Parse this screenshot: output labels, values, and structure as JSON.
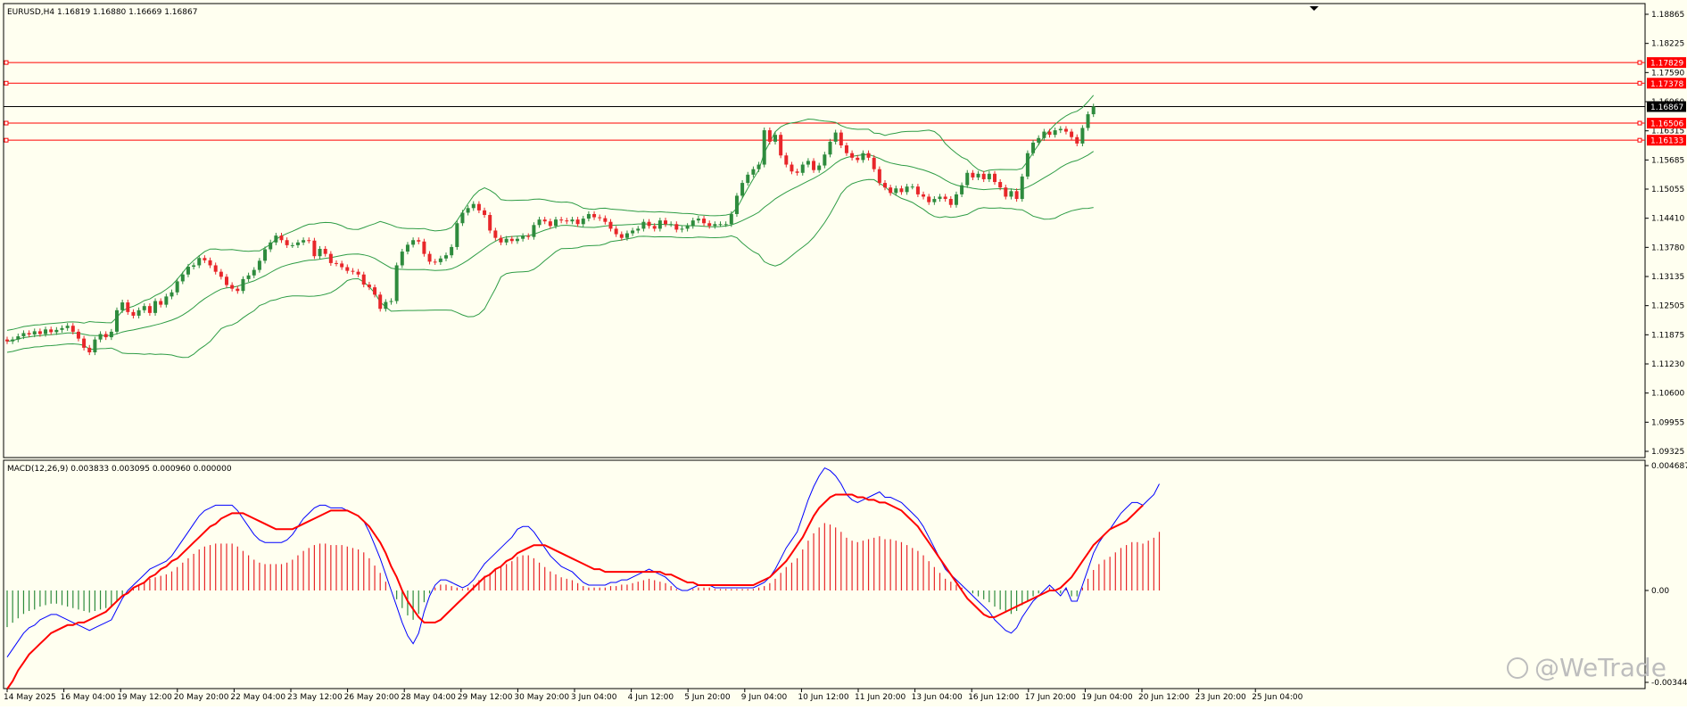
{
  "symbol": {
    "header": "EURUSD,H4  1.16819 1.16880 1.16669 1.16867"
  },
  "macd": {
    "header": "MACD(12,26,9) 0.003833 0.003095 0.000960 0.000000"
  },
  "watermark": {
    "text": "@WeTrade"
  },
  "colors": {
    "background": "#fffff0",
    "frame": "#000000",
    "bull": "#2e8b3d",
    "bear": "#e8262a",
    "band": "#2e9c45",
    "level_line": "#ff0000",
    "macd_line": "#0000ff",
    "signal_line": "#ff0000"
  },
  "price_axis": {
    "ticks": [
      "1.18865",
      "1.18225",
      "1.17590",
      "1.16960",
      "1.16315",
      "1.15685",
      "1.15055",
      "1.14410",
      "1.13780",
      "1.13135",
      "1.12505",
      "1.11875",
      "1.11230",
      "1.10600",
      "1.09955",
      "1.09325"
    ],
    "labels": [
      {
        "text": "1.17829",
        "price": 1.17829,
        "kind": "level"
      },
      {
        "text": "1.17378",
        "price": 1.17378,
        "kind": "level"
      },
      {
        "text": "1.16867",
        "price": 1.16867,
        "kind": "current"
      },
      {
        "text": "1.16506",
        "price": 1.16506,
        "kind": "level"
      },
      {
        "text": "1.16133",
        "price": 1.16133,
        "kind": "level"
      }
    ]
  },
  "macd_axis": {
    "ticks": [
      "0.004687",
      "0.00",
      "-0.003448"
    ]
  },
  "time_axis": {
    "labels": [
      "14 May 2025",
      "16 May 04:00",
      "19 May 12:00",
      "20 May 20:00",
      "22 May 04:00",
      "23 May 12:00",
      "26 May 20:00",
      "28 May 04:00",
      "29 May 12:00",
      "30 May 20:00",
      "3 Jun 04:00",
      "4 Jun 12:00",
      "5 Jun 20:00",
      "9 Jun 04:00",
      "10 Jun 12:00",
      "11 Jun 20:00",
      "13 Jun 04:00",
      "16 Jun 12:00",
      "17 Jun 20:00",
      "19 Jun 04:00",
      "20 Jun 12:00",
      "23 Jun 20:00",
      "25 Jun 04:00"
    ]
  },
  "chart_data": [
    {
      "type": "candlestick",
      "title": "EURUSD,H4",
      "ylim": [
        1.0926,
        1.19
      ],
      "horizontal_levels": [
        1.17829,
        1.17378,
        1.16867,
        1.16506,
        1.16133
      ],
      "closes": [
        1.1174,
        1.1178,
        1.1185,
        1.1192,
        1.1189,
        1.1196,
        1.119,
        1.12,
        1.1194,
        1.1199,
        1.1203,
        1.1208,
        1.1195,
        1.118,
        1.116,
        1.115,
        1.1178,
        1.119,
        1.1183,
        1.1195,
        1.1242,
        1.1259,
        1.1238,
        1.123,
        1.1242,
        1.1251,
        1.1236,
        1.1262,
        1.1254,
        1.1272,
        1.1281,
        1.1305,
        1.132,
        1.1337,
        1.134,
        1.1356,
        1.1351,
        1.134,
        1.1326,
        1.1315,
        1.1297,
        1.1289,
        1.1284,
        1.131,
        1.1318,
        1.133,
        1.135,
        1.1375,
        1.139,
        1.1405,
        1.1395,
        1.1384,
        1.1384,
        1.139,
        1.1395,
        1.1394,
        1.136,
        1.1376,
        1.1365,
        1.1345,
        1.1344,
        1.1336,
        1.1328,
        1.1326,
        1.132,
        1.1298,
        1.1292,
        1.1276,
        1.1245,
        1.126,
        1.1262,
        1.134,
        1.137,
        1.1385,
        1.1395,
        1.1392,
        1.1365,
        1.1348,
        1.1347,
        1.1355,
        1.1362,
        1.138,
        1.1432,
        1.1455,
        1.1465,
        1.1474,
        1.146,
        1.145,
        1.1416,
        1.14,
        1.139,
        1.1398,
        1.1393,
        1.1398,
        1.1404,
        1.1402,
        1.1428,
        1.144,
        1.1436,
        1.1426,
        1.144,
        1.1438,
        1.1436,
        1.144,
        1.143,
        1.1442,
        1.1452,
        1.1445,
        1.1443,
        1.1435,
        1.142,
        1.1408,
        1.14,
        1.141,
        1.1416,
        1.142,
        1.1435,
        1.1426,
        1.142,
        1.1438,
        1.143,
        1.143,
        1.1418,
        1.142,
        1.1426,
        1.1438,
        1.1442,
        1.1432,
        1.1426,
        1.143,
        1.143,
        1.143,
        1.1452,
        1.1492,
        1.152,
        1.1538,
        1.155,
        1.156,
        1.1635,
        1.161,
        1.1625,
        1.158,
        1.156,
        1.1545,
        1.1542,
        1.156,
        1.1568,
        1.1548,
        1.1558,
        1.1582,
        1.161,
        1.163,
        1.1602,
        1.1585,
        1.1575,
        1.157,
        1.1585,
        1.1575,
        1.155,
        1.152,
        1.151,
        1.1498,
        1.1508,
        1.15,
        1.1512,
        1.1512,
        1.1495,
        1.149,
        1.1478,
        1.1485,
        1.149,
        1.1485,
        1.1472,
        1.1495,
        1.1515,
        1.1542,
        1.1532,
        1.154,
        1.1528,
        1.154,
        1.1522,
        1.151,
        1.149,
        1.1502,
        1.1485,
        1.1534,
        1.1585,
        1.1608,
        1.1618,
        1.1632,
        1.1625,
        1.1635,
        1.1638,
        1.1632,
        1.162,
        1.1606,
        1.164,
        1.167,
        1.1687
      ]
    },
    {
      "type": "line",
      "title": "MACD(12,26,9)",
      "ylim": [
        -0.003448,
        0.004687
      ],
      "series": [
        {
          "name": "",
          "kind": "main",
          "values": [
            -0.0025,
            -0.0022,
            -0.0019,
            -0.0016,
            -0.0014,
            -0.0013,
            -0.0011,
            -0.001,
            -0.0009,
            -0.0009,
            -0.001,
            -0.0011,
            -0.0012,
            -0.0013,
            -0.0014,
            -0.0015,
            -0.0014,
            -0.0013,
            -0.0012,
            -0.0011,
            -0.0007,
            -0.0003,
            0.0,
            0.0002,
            0.0004,
            0.0006,
            0.0008,
            0.0009,
            0.001,
            0.0011,
            0.0013,
            0.0016,
            0.0019,
            0.0022,
            0.0025,
            0.0028,
            0.003,
            0.0031,
            0.0032,
            0.0032,
            0.0032,
            0.0032,
            0.003,
            0.0027,
            0.0024,
            0.0021,
            0.0019,
            0.0018,
            0.0018,
            0.0018,
            0.0018,
            0.0019,
            0.0021,
            0.0024,
            0.0027,
            0.0029,
            0.0031,
            0.0032,
            0.0032,
            0.0031,
            0.0031,
            0.0031,
            0.003,
            0.0029,
            0.0028,
            0.0026,
            0.0022,
            0.0017,
            0.0012,
            0.0006,
            0.0,
            -0.0006,
            -0.0012,
            -0.0017,
            -0.002,
            -0.0016,
            -0.0008,
            -0.0002,
            0.0002,
            0.0004,
            0.0004,
            0.0003,
            0.0002,
            0.0001,
            0.0002,
            0.0004,
            0.0007,
            0.001,
            0.0012,
            0.0014,
            0.0016,
            0.0018,
            0.002,
            0.0023,
            0.0024,
            0.0024,
            0.0022,
            0.0019,
            0.0016,
            0.0013,
            0.0011,
            0.0009,
            0.0008,
            0.0007,
            0.0005,
            0.0003,
            0.0002,
            0.0002,
            0.0002,
            0.0002,
            0.0003,
            0.0003,
            0.0004,
            0.0004,
            0.0005,
            0.0006,
            0.0007,
            0.0008,
            0.0007,
            0.0006,
            0.0005,
            0.0003,
            0.0001,
            0.0,
            0.0,
            0.0001,
            0.0002,
            0.0002,
            0.0002,
            0.0001,
            0.0001,
            0.0001,
            0.0001,
            0.0001,
            0.0001,
            0.0001,
            0.0001,
            0.0002,
            0.0003,
            0.0005,
            0.0008,
            0.0012,
            0.0016,
            0.0019,
            0.0022,
            0.0028,
            0.0034,
            0.0039,
            0.0043,
            0.0046,
            0.0045,
            0.0043,
            0.004,
            0.0036,
            0.0034,
            0.0033,
            0.0034,
            0.0035,
            0.0036,
            0.0037,
            0.0035,
            0.0035,
            0.0034,
            0.0033,
            0.0031,
            0.0029,
            0.0027,
            0.0024,
            0.002,
            0.0016,
            0.0012,
            0.0008,
            0.0006,
            0.0004,
            0.0002,
            0.0,
            -0.0002,
            -0.0004,
            -0.0006,
            -0.0008,
            -0.0011,
            -0.0013,
            -0.0015,
            -0.0016,
            -0.0014,
            -0.001,
            -0.0007,
            -0.0004,
            -0.0002,
            0.0,
            0.0002,
            0.0,
            -0.0002,
            0.0001,
            -0.0004,
            -0.0004,
            0.0002,
            0.0008,
            0.0014,
            0.0018,
            0.0021,
            0.0023,
            0.0026,
            0.0029,
            0.0031,
            0.0033,
            0.0033,
            0.0032,
            0.0034,
            0.0036,
            0.004
          ]
        },
        {
          "name": "",
          "kind": "signal",
          "values": [
            -0.0037,
            -0.0034,
            -0.003,
            -0.0027,
            -0.0024,
            -0.0022,
            -0.002,
            -0.0018,
            -0.0016,
            -0.0015,
            -0.0014,
            -0.0013,
            -0.0013,
            -0.0012,
            -0.0012,
            -0.0011,
            -0.001,
            -0.0009,
            -0.0008,
            -0.0006,
            -0.0004,
            -0.0002,
            -0.0001,
            0.0001,
            0.0002,
            0.0003,
            0.0005,
            0.0006,
            0.0008,
            0.0009,
            0.0011,
            0.0012,
            0.0014,
            0.0016,
            0.0018,
            0.002,
            0.0022,
            0.0024,
            0.0025,
            0.0027,
            0.0028,
            0.0029,
            0.0029,
            0.0029,
            0.0028,
            0.0027,
            0.0026,
            0.0025,
            0.0024,
            0.0023,
            0.0023,
            0.0023,
            0.0023,
            0.0024,
            0.0025,
            0.0026,
            0.0027,
            0.0028,
            0.0029,
            0.003,
            0.003,
            0.003,
            0.003,
            0.0029,
            0.0028,
            0.0026,
            0.0024,
            0.0021,
            0.0018,
            0.0014,
            0.0009,
            0.0005,
            0.0,
            -0.0004,
            -0.0007,
            -0.001,
            -0.0012,
            -0.0012,
            -0.0012,
            -0.0011,
            -0.0009,
            -0.0007,
            -0.0005,
            -0.0003,
            -0.0001,
            0.0001,
            0.0003,
            0.0005,
            0.0006,
            0.0008,
            0.0009,
            0.0011,
            0.0012,
            0.0014,
            0.0015,
            0.0016,
            0.0017,
            0.0017,
            0.0017,
            0.0016,
            0.0015,
            0.0014,
            0.0013,
            0.0012,
            0.0011,
            0.001,
            0.0009,
            0.0008,
            0.0008,
            0.0007,
            0.0007,
            0.0007,
            0.0007,
            0.0007,
            0.0007,
            0.0007,
            0.0007,
            0.0007,
            0.0007,
            0.0007,
            0.0006,
            0.0006,
            0.0005,
            0.0004,
            0.0003,
            0.0003,
            0.0002,
            0.0002,
            0.0002,
            0.0002,
            0.0002,
            0.0002,
            0.0002,
            0.0002,
            0.0002,
            0.0002,
            0.0002,
            0.0003,
            0.0004,
            0.0005,
            0.0007,
            0.0009,
            0.0011,
            0.0014,
            0.0017,
            0.002,
            0.0024,
            0.0028,
            0.0031,
            0.0033,
            0.0035,
            0.0036,
            0.0036,
            0.0036,
            0.0036,
            0.0035,
            0.0035,
            0.0034,
            0.0034,
            0.0033,
            0.0033,
            0.0032,
            0.0031,
            0.003,
            0.0028,
            0.0026,
            0.0024,
            0.0021,
            0.0018,
            0.0015,
            0.0012,
            0.0009,
            0.0006,
            0.0003,
            0.0,
            -0.0003,
            -0.0005,
            -0.0007,
            -0.0009,
            -0.001,
            -0.001,
            -0.0009,
            -0.0008,
            -0.0007,
            -0.0006,
            -0.0005,
            -0.0004,
            -0.0003,
            -0.0002,
            -0.0001,
            0.0,
            0.0,
            0.0001,
            0.0003,
            0.0005,
            0.0008,
            0.0011,
            0.0014,
            0.0017,
            0.0019,
            0.0021,
            0.0023,
            0.0024,
            0.0025,
            0.0026,
            0.0028,
            0.003,
            0.0032
          ]
        }
      ]
    }
  ]
}
